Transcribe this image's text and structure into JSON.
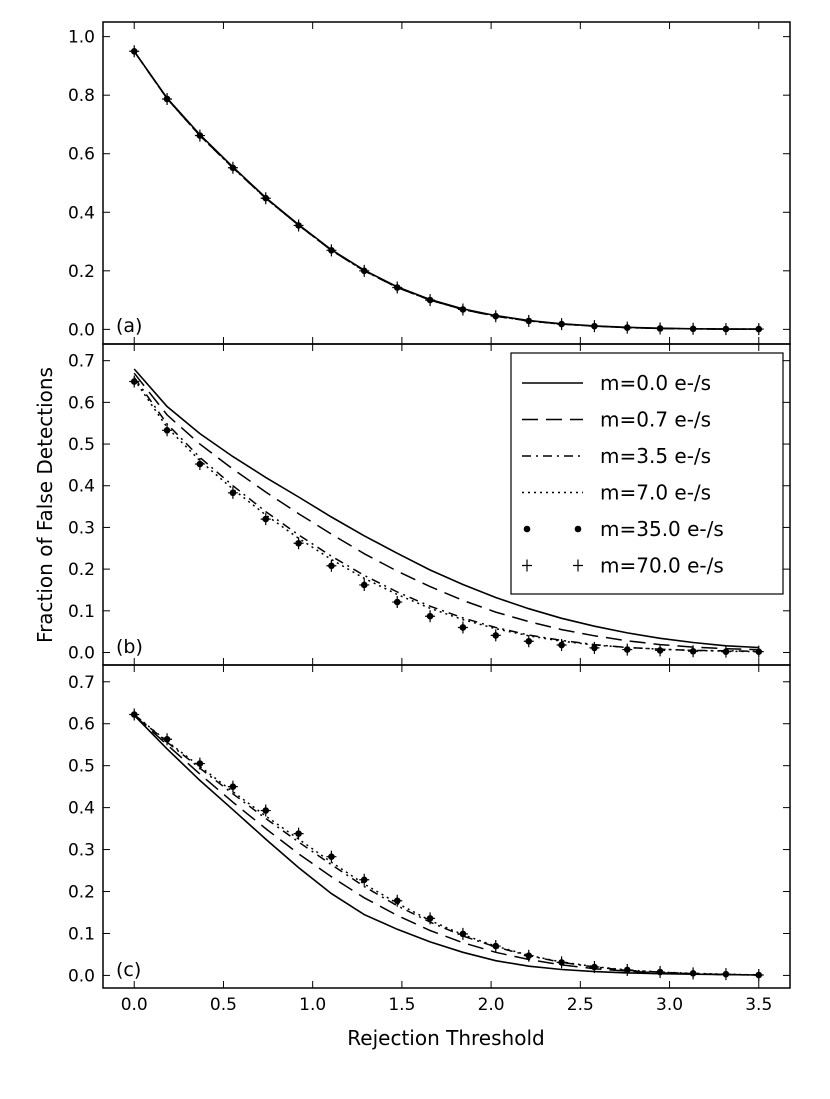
{
  "figure": {
    "ylabel": "Fraction of False Detections",
    "xlabel": "Rejection Threshold"
  },
  "chart_data": [
    {
      "type": "line",
      "panel_label": "(a)",
      "xlim": [
        -0.175,
        3.675
      ],
      "ylim": [
        -0.05,
        1.05
      ],
      "yticks": [
        0.0,
        0.2,
        0.4,
        0.6,
        0.8,
        1.0
      ],
      "ytick_labels": [
        "0.0",
        "0.2",
        "0.4",
        "0.6",
        "0.8",
        "1.0"
      ],
      "x": [
        0.0,
        0.184,
        0.368,
        0.553,
        0.737,
        0.921,
        1.105,
        1.289,
        1.474,
        1.658,
        1.842,
        2.026,
        2.211,
        2.395,
        2.579,
        2.763,
        2.947,
        3.132,
        3.316,
        3.5
      ],
      "series": [
        {
          "name": "m=0.0 e-/s",
          "style": "solid",
          "values": [
            0.95,
            0.79,
            0.665,
            0.555,
            0.45,
            0.358,
            0.272,
            0.202,
            0.145,
            0.102,
            0.07,
            0.047,
            0.03,
            0.019,
            0.012,
            0.007,
            0.004,
            0.002,
            0.001,
            0.001
          ]
        },
        {
          "name": "m=0.7 e-/s",
          "style": "dashed",
          "values": [
            0.95,
            0.788,
            0.662,
            0.552,
            0.448,
            0.356,
            0.27,
            0.2,
            0.143,
            0.1,
            0.068,
            0.045,
            0.029,
            0.018,
            0.011,
            0.006,
            0.003,
            0.002,
            0.001,
            0.001
          ]
        },
        {
          "name": "m=3.5 e-/s",
          "style": "dashdot",
          "values": [
            0.95,
            0.788,
            0.662,
            0.552,
            0.448,
            0.356,
            0.27,
            0.2,
            0.143,
            0.1,
            0.068,
            0.045,
            0.029,
            0.018,
            0.011,
            0.006,
            0.003,
            0.002,
            0.001,
            0.001
          ]
        },
        {
          "name": "m=7.0 e-/s",
          "style": "dotted",
          "values": [
            0.95,
            0.788,
            0.662,
            0.552,
            0.448,
            0.356,
            0.27,
            0.2,
            0.143,
            0.1,
            0.068,
            0.045,
            0.029,
            0.018,
            0.011,
            0.006,
            0.003,
            0.002,
            0.001,
            0.001
          ]
        },
        {
          "name": "m=35.0 e-/s",
          "style": "dot",
          "values": [
            0.95,
            0.787,
            0.662,
            0.552,
            0.448,
            0.355,
            0.27,
            0.2,
            0.143,
            0.1,
            0.068,
            0.045,
            0.029,
            0.018,
            0.011,
            0.006,
            0.003,
            0.002,
            0.001,
            0.001
          ]
        },
        {
          "name": "m=70.0 e-/s",
          "style": "plus",
          "values": [
            0.95,
            0.787,
            0.662,
            0.552,
            0.448,
            0.355,
            0.27,
            0.2,
            0.143,
            0.1,
            0.068,
            0.045,
            0.029,
            0.018,
            0.011,
            0.006,
            0.003,
            0.002,
            0.001,
            0.001
          ]
        }
      ]
    },
    {
      "type": "line",
      "panel_label": "(b)",
      "xlim": [
        -0.175,
        3.675
      ],
      "ylim": [
        -0.03,
        0.74
      ],
      "yticks": [
        0.0,
        0.1,
        0.2,
        0.3,
        0.4,
        0.5,
        0.6,
        0.7
      ],
      "ytick_labels": [
        "0.0",
        "0.1",
        "0.2",
        "0.3",
        "0.4",
        "0.5",
        "0.6",
        "0.7"
      ],
      "x": [
        0.0,
        0.184,
        0.368,
        0.553,
        0.737,
        0.921,
        1.105,
        1.289,
        1.474,
        1.658,
        1.842,
        2.026,
        2.211,
        2.395,
        2.579,
        2.763,
        2.947,
        3.132,
        3.316,
        3.5
      ],
      "legend": {
        "position": "upper right"
      },
      "series": [
        {
          "name": "m=0.0 e-/s",
          "style": "solid",
          "values": [
            0.68,
            0.59,
            0.525,
            0.47,
            0.42,
            0.373,
            0.325,
            0.28,
            0.238,
            0.198,
            0.163,
            0.132,
            0.105,
            0.082,
            0.063,
            0.047,
            0.034,
            0.024,
            0.016,
            0.012
          ]
        },
        {
          "name": "m=0.7 e-/s",
          "style": "dashed",
          "values": [
            0.67,
            0.57,
            0.5,
            0.44,
            0.385,
            0.333,
            0.284,
            0.237,
            0.195,
            0.158,
            0.125,
            0.097,
            0.074,
            0.055,
            0.04,
            0.028,
            0.019,
            0.013,
            0.009,
            0.007
          ]
        },
        {
          "name": "m=3.5 e-/s",
          "style": "dashdot",
          "values": [
            0.66,
            0.548,
            0.468,
            0.4,
            0.338,
            0.282,
            0.231,
            0.185,
            0.145,
            0.111,
            0.083,
            0.06,
            0.042,
            0.029,
            0.019,
            0.012,
            0.008,
            0.005,
            0.004,
            0.003
          ]
        },
        {
          "name": "m=7.0 e-/s",
          "style": "dotted",
          "values": [
            0.655,
            0.54,
            0.46,
            0.392,
            0.33,
            0.274,
            0.223,
            0.178,
            0.139,
            0.106,
            0.079,
            0.057,
            0.04,
            0.027,
            0.018,
            0.012,
            0.008,
            0.005,
            0.003,
            0.002
          ]
        },
        {
          "name": "m=35.0 e-/s",
          "style": "dot",
          "values": [
            0.65,
            0.533,
            0.452,
            0.383,
            0.32,
            0.262,
            0.208,
            0.162,
            0.121,
            0.087,
            0.06,
            0.041,
            0.027,
            0.018,
            0.011,
            0.007,
            0.005,
            0.003,
            0.002,
            0.002
          ]
        },
        {
          "name": "m=70.0 e-/s",
          "style": "plus",
          "values": [
            0.65,
            0.533,
            0.452,
            0.383,
            0.32,
            0.262,
            0.208,
            0.162,
            0.121,
            0.087,
            0.06,
            0.041,
            0.027,
            0.018,
            0.011,
            0.007,
            0.005,
            0.003,
            0.002,
            0.002
          ]
        }
      ]
    },
    {
      "type": "line",
      "panel_label": "(c)",
      "xlim": [
        -0.175,
        3.675
      ],
      "ylim": [
        -0.03,
        0.74
      ],
      "yticks": [
        0.0,
        0.1,
        0.2,
        0.3,
        0.4,
        0.5,
        0.6,
        0.7
      ],
      "ytick_labels": [
        "0.0",
        "0.1",
        "0.2",
        "0.3",
        "0.4",
        "0.5",
        "0.6",
        "0.7"
      ],
      "xticks": [
        0.0,
        0.5,
        1.0,
        1.5,
        2.0,
        2.5,
        3.0,
        3.5
      ],
      "xtick_labels": [
        "0.0",
        "0.5",
        "1.0",
        "1.5",
        "2.0",
        "2.5",
        "3.0",
        "3.5"
      ],
      "x": [
        0.0,
        0.184,
        0.368,
        0.553,
        0.737,
        0.921,
        1.105,
        1.289,
        1.474,
        1.658,
        1.842,
        2.026,
        2.211,
        2.395,
        2.579,
        2.763,
        2.947,
        3.132,
        3.316,
        3.5
      ],
      "series": [
        {
          "name": "m=0.0 e-/s",
          "style": "solid",
          "values": [
            0.62,
            0.54,
            0.465,
            0.395,
            0.325,
            0.257,
            0.195,
            0.145,
            0.11,
            0.08,
            0.055,
            0.035,
            0.022,
            0.014,
            0.009,
            0.006,
            0.004,
            0.003,
            0.002,
            0.001
          ]
        },
        {
          "name": "m=0.7 e-/s",
          "style": "dashed",
          "values": [
            0.62,
            0.55,
            0.48,
            0.413,
            0.35,
            0.29,
            0.235,
            0.185,
            0.143,
            0.107,
            0.078,
            0.055,
            0.038,
            0.025,
            0.016,
            0.01,
            0.006,
            0.004,
            0.002,
            0.001
          ]
        },
        {
          "name": "m=3.5 e-/s",
          "style": "dashdot",
          "values": [
            0.622,
            0.556,
            0.494,
            0.433,
            0.374,
            0.318,
            0.264,
            0.212,
            0.166,
            0.127,
            0.094,
            0.068,
            0.047,
            0.031,
            0.02,
            0.012,
            0.008,
            0.004,
            0.002,
            0.001
          ]
        },
        {
          "name": "m=7.0 e-/s",
          "style": "dotted",
          "values": [
            0.622,
            0.558,
            0.498,
            0.438,
            0.38,
            0.325,
            0.27,
            0.218,
            0.172,
            0.131,
            0.097,
            0.07,
            0.048,
            0.032,
            0.021,
            0.013,
            0.008,
            0.005,
            0.003,
            0.001
          ]
        },
        {
          "name": "m=35.0 e-/s",
          "style": "dot",
          "values": [
            0.622,
            0.563,
            0.505,
            0.45,
            0.393,
            0.338,
            0.283,
            0.228,
            0.178,
            0.136,
            0.099,
            0.07,
            0.047,
            0.031,
            0.02,
            0.013,
            0.008,
            0.005,
            0.003,
            0.001
          ]
        },
        {
          "name": "m=70.0 e-/s",
          "style": "plus",
          "values": [
            0.622,
            0.563,
            0.505,
            0.45,
            0.393,
            0.338,
            0.283,
            0.228,
            0.178,
            0.136,
            0.099,
            0.07,
            0.047,
            0.031,
            0.02,
            0.013,
            0.008,
            0.005,
            0.003,
            0.001
          ]
        }
      ]
    }
  ]
}
